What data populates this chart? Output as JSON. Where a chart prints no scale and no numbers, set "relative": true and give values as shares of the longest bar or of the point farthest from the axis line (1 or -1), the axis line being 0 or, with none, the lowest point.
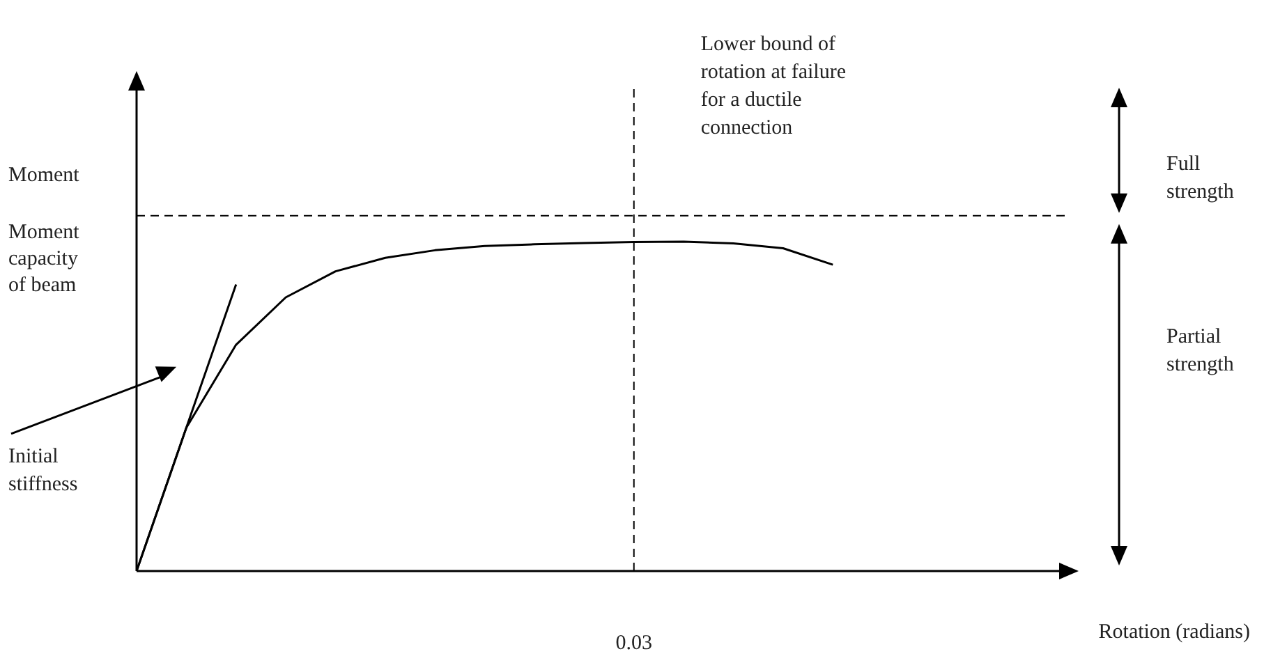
{
  "chart_data": {
    "type": "line",
    "relative": true,
    "ylabel": "Moment",
    "categories": [
      null,
      null,
      null,
      null,
      null,
      null,
      null,
      null,
      null,
      null,
      null,
      null,
      null,
      null,
      null
    ],
    "tick_labels": "x",
    "marker": "none",
    "line_style": "solid",
    "series": [
      {
        "color": "#000000",
        "values": [
          0,
          0.435,
          0.687,
          0.831,
          0.91,
          0.951,
          0.974,
          0.987,
          0.992,
          0.996,
          0.999,
          1,
          0.995,
          0.98,
          0.93
        ]
      },
      {
        "color": "#000000",
        "values": [
          0,
          0.435,
          0.87,
          null,
          null,
          null,
          null,
          null,
          null,
          null,
          null,
          null,
          null,
          null,
          null
        ]
      }
    ],
    "ref_lines": [
      {
        "axis": "y",
        "value": 1.079,
        "label": "Moment capacity of beam",
        "line_style": "dashed",
        "color": "#000000"
      },
      {
        "axis": "x",
        "value": "0.03",
        "label": "Lower bound of rotation at failure for a ductile connection",
        "line_style": "dashed",
        "color": "#000000"
      }
    ],
    "annotations": [
      "Initial stiffness",
      "Full strength",
      "Partial strength",
      "Rotation (radians)"
    ]
  }
}
